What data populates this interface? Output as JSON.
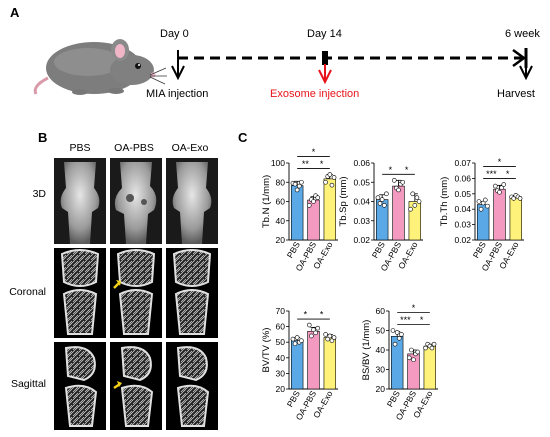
{
  "panels": {
    "a": {
      "letter": "A",
      "timeline": [
        {
          "top": "Day 0",
          "bottom": "MIA injection"
        },
        {
          "top": "Day 14",
          "bottom": "Exosome injection"
        },
        {
          "top": "6 week",
          "bottom": "Harvest"
        }
      ]
    },
    "b": {
      "letter": "B",
      "columns": [
        "PBS",
        "OA-PBS",
        "OA-Exo"
      ],
      "rows": [
        "3D",
        "Coronal",
        "Sagittal"
      ]
    },
    "c": {
      "letter": "C"
    }
  },
  "colors": {
    "PBS": "#5aa8e6",
    "OA-PBS": "#f49ac1",
    "OA-Exo": "#fff27a",
    "red_arrow": "#e8141b",
    "yellow_arrow": "#f3d01a"
  },
  "chart_data": [
    {
      "type": "bar",
      "categories": [
        "PBS",
        "OA-PBS",
        "OA-Exo"
      ],
      "values": [
        76.5,
        61.5,
        83.5
      ],
      "errors": [
        4.5,
        3.5,
        4.5
      ],
      "ylabel": "Tb.N (1/mm)",
      "ylim": [
        20,
        100
      ],
      "yticks": [
        20,
        40,
        60,
        80,
        100
      ],
      "points": [
        [
          79,
          78,
          72,
          76,
          80
        ],
        [
          56,
          62,
          60,
          66,
          64
        ],
        [
          80,
          86,
          88,
          77,
          85
        ]
      ],
      "sig": [
        {
          "a": 0,
          "b": 1,
          "label": "**"
        },
        {
          "a": 1,
          "b": 2,
          "label": "*"
        },
        {
          "a": 0,
          "b": 2,
          "label": "*"
        }
      ]
    },
    {
      "type": "bar",
      "categories": [
        "PBS",
        "OA-PBS",
        "OA-Exo"
      ],
      "values": [
        0.041,
        0.048,
        0.04
      ],
      "errors": [
        0.0025,
        0.003,
        0.004
      ],
      "ylabel": "Tb.Sp (mm)",
      "ylim": [
        0.02,
        0.06
      ],
      "yticks": [
        0.02,
        0.03,
        0.04,
        0.05,
        0.06
      ],
      "points": [
        [
          0.042,
          0.039,
          0.041,
          0.038,
          0.044
        ],
        [
          0.051,
          0.047,
          0.046,
          0.049,
          0.05
        ],
        [
          0.036,
          0.044,
          0.038,
          0.042,
          0.04
        ]
      ],
      "sig": [
        {
          "a": 0,
          "b": 1,
          "label": "*"
        },
        {
          "a": 1,
          "b": 2,
          "label": "*"
        }
      ]
    },
    {
      "type": "bar",
      "categories": [
        "PBS",
        "OA-PBS",
        "OA-Exo"
      ],
      "values": [
        0.043,
        0.053,
        0.048
      ],
      "errors": [
        0.002,
        0.0025,
        0.001
      ],
      "ylabel": "Tb.Th (mm)",
      "ylim": [
        0.02,
        0.07
      ],
      "yticks": [
        0.02,
        0.03,
        0.04,
        0.05,
        0.06,
        0.07
      ],
      "points": [
        [
          0.045,
          0.04,
          0.044,
          0.046,
          0.042
        ],
        [
          0.055,
          0.052,
          0.051,
          0.054,
          0.056
        ],
        [
          0.048,
          0.047,
          0.049,
          0.048,
          0.047
        ]
      ],
      "sig": [
        {
          "a": 0,
          "b": 1,
          "label": "***"
        },
        {
          "a": 1,
          "b": 2,
          "label": "*"
        },
        {
          "a": 0,
          "b": 2,
          "label": "*"
        }
      ]
    },
    {
      "type": "bar",
      "categories": [
        "PBS",
        "OA-PBS",
        "OA-Exo"
      ],
      "values": [
        51,
        57,
        53
      ],
      "errors": [
        2,
        2.5,
        2
      ],
      "ylabel": "BV/TV (%)",
      "ylim": [
        20,
        70
      ],
      "yticks": [
        20,
        30,
        40,
        50,
        60,
        70
      ],
      "points": [
        [
          52,
          49,
          53,
          50,
          51
        ],
        [
          61,
          54,
          58,
          56,
          59
        ],
        [
          55,
          52,
          54,
          51,
          53
        ]
      ],
      "sig": [
        {
          "a": 0,
          "b": 1,
          "label": "*"
        },
        {
          "a": 1,
          "b": 2,
          "label": "*"
        }
      ]
    },
    {
      "type": "bar",
      "categories": [
        "PBS",
        "OA-PBS",
        "OA-Exo"
      ],
      "values": [
        47,
        38,
        42
      ],
      "errors": [
        2.5,
        2,
        1
      ],
      "ylabel": "BS/BV (1/mm)",
      "ylim": [
        20,
        60
      ],
      "yticks": [
        20,
        30,
        40,
        50,
        60
      ],
      "points": [
        [
          50,
          43,
          49,
          46,
          48
        ],
        [
          36,
          40,
          35,
          38,
          39
        ],
        [
          41,
          43,
          42,
          41,
          43
        ]
      ],
      "sig": [
        {
          "a": 0,
          "b": 1,
          "label": "***"
        },
        {
          "a": 1,
          "b": 2,
          "label": "*"
        },
        {
          "a": 0,
          "b": 2,
          "label": "*"
        }
      ]
    }
  ]
}
